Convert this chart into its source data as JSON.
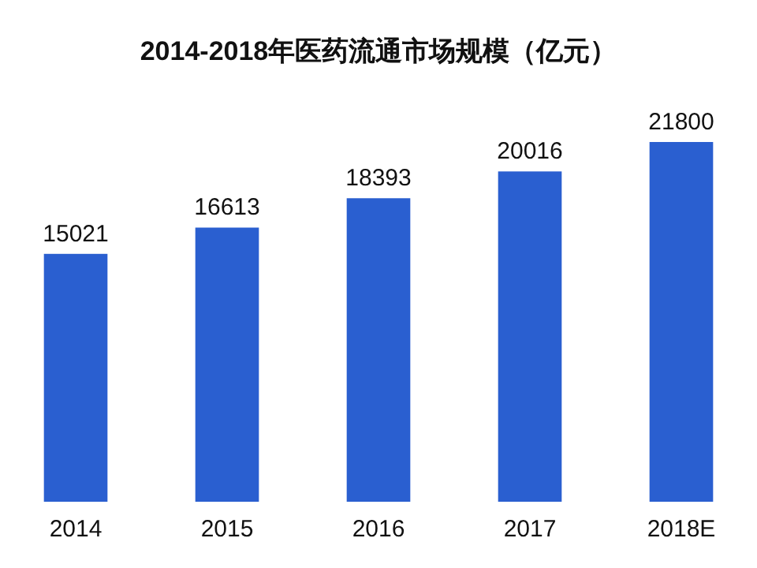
{
  "chart_data": {
    "type": "bar",
    "title": "2014-2018年医药流通市场规模（亿元）",
    "categories": [
      "2014",
      "2015",
      "2016",
      "2017",
      "2018E"
    ],
    "values": [
      15021,
      16613,
      18393,
      20016,
      21800
    ],
    "color": "#2a5fd0",
    "data_labels": true
  }
}
